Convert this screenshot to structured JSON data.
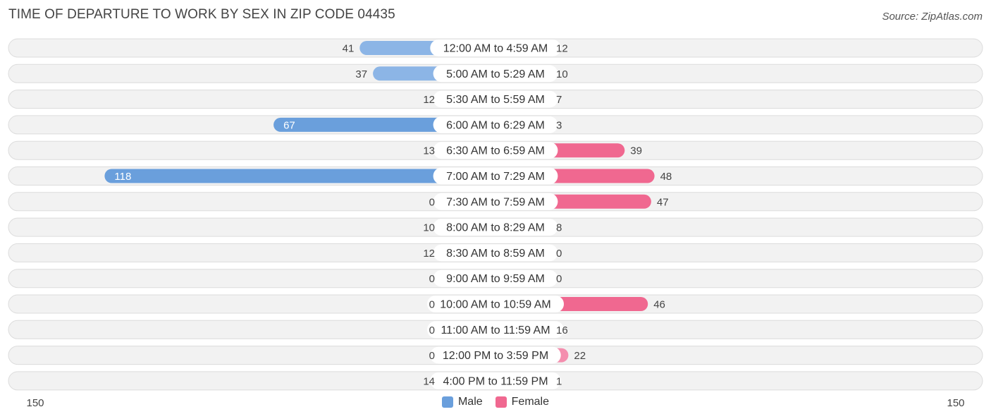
{
  "title": "TIME OF DEPARTURE TO WORK BY SEX IN ZIP CODE 04435",
  "source": "Source: ZipAtlas.com",
  "colors": {
    "male_strong": "#6a9fdc",
    "male_light": "#a9c6eb",
    "female_strong": "#f06890",
    "female_light": "#f6a8c0",
    "row_bg": "#f2f2f2",
    "row_border": "#dcdcdc"
  },
  "legend": {
    "male": "Male",
    "female": "Female"
  },
  "chart_data": {
    "type": "bar",
    "orientation": "horizontal-diverging",
    "categories": [
      "12:00 AM to 4:59 AM",
      "5:00 AM to 5:29 AM",
      "5:30 AM to 5:59 AM",
      "6:00 AM to 6:29 AM",
      "6:30 AM to 6:59 AM",
      "7:00 AM to 7:29 AM",
      "7:30 AM to 7:59 AM",
      "8:00 AM to 8:29 AM",
      "8:30 AM to 8:59 AM",
      "9:00 AM to 9:59 AM",
      "10:00 AM to 10:59 AM",
      "11:00 AM to 11:59 AM",
      "12:00 PM to 3:59 PM",
      "4:00 PM to 11:59 PM"
    ],
    "series": [
      {
        "name": "Male",
        "values": [
          41,
          37,
          12,
          67,
          13,
          118,
          0,
          10,
          12,
          0,
          0,
          0,
          0,
          14
        ]
      },
      {
        "name": "Female",
        "values": [
          12,
          10,
          7,
          3,
          39,
          48,
          47,
          8,
          0,
          0,
          46,
          16,
          22,
          1
        ]
      }
    ],
    "axis_min_label": "150",
    "axis_max_label": "150",
    "xlim": [
      -150,
      150
    ],
    "legend_position": "bottom-center",
    "grid": false
  }
}
